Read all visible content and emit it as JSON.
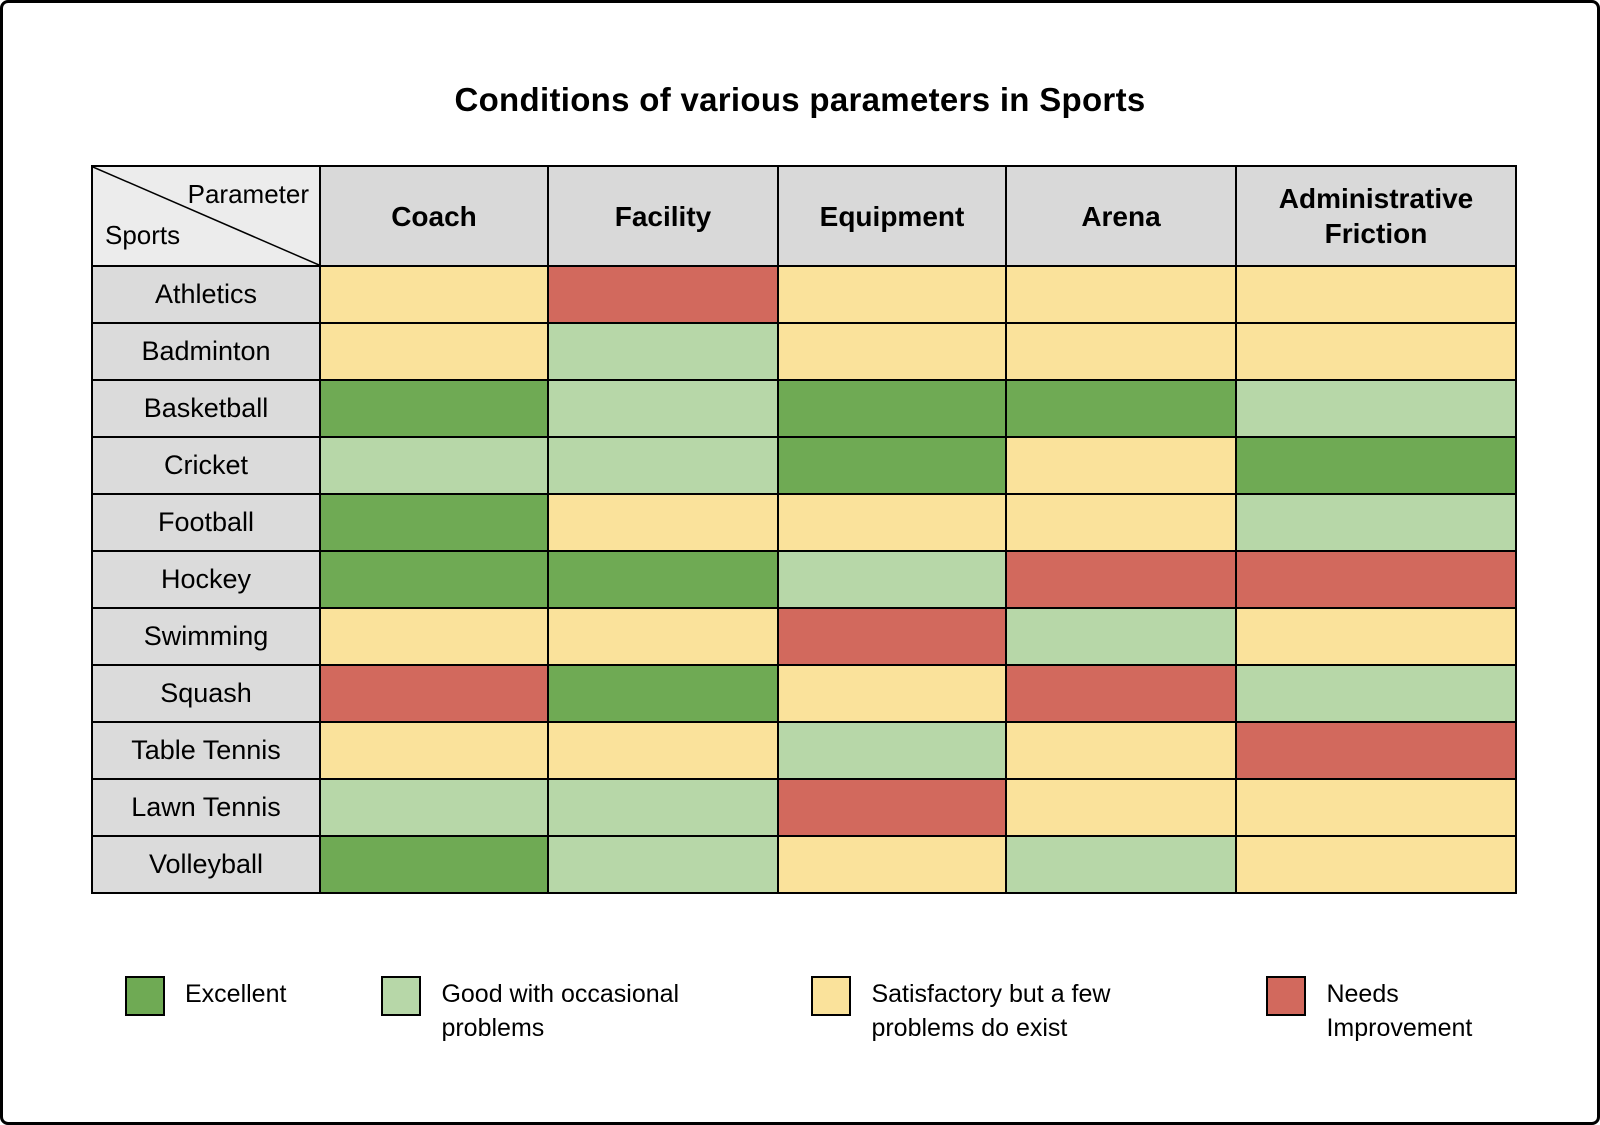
{
  "title": "Conditions of various parameters in Sports",
  "corner": {
    "top_label": "Parameter",
    "bottom_label": "Sports"
  },
  "colors": {
    "excellent": "#6FAA54",
    "good": "#B7D7A8",
    "satisfactory": "#FAE29B",
    "needs_improvement": "#D2695D",
    "header_bg": "#D9D9D9",
    "row_label_bg": "#DBDBDB",
    "corner_bg": "#ECECEC",
    "border": "#000000"
  },
  "legend": [
    {
      "key": "excellent",
      "label": "Excellent"
    },
    {
      "key": "good",
      "label": "Good with occasional problems"
    },
    {
      "key": "satisfactory",
      "label": "Satisfactory but a few problems do exist"
    },
    {
      "key": "needs_improvement",
      "label": "Needs Improvement"
    }
  ],
  "chart_data": {
    "type": "heatmap",
    "title": "Conditions of various parameters in Sports",
    "x_label": "Parameter",
    "y_label": "Sports",
    "x_categories": [
      "Coach",
      "Facility",
      "Equipment",
      "Arena",
      "Administrative Friction"
    ],
    "y_categories": [
      "Athletics",
      "Badminton",
      "Basketball",
      "Cricket",
      "Football",
      "Hockey",
      "Swimming",
      "Squash",
      "Table Tennis",
      "Lawn Tennis",
      "Volleyball"
    ],
    "value_labels": {
      "excellent": "Excellent",
      "good": "Good with occasional problems",
      "satisfactory": "Satisfactory but a few problems do exist",
      "needs_improvement": "Needs Improvement"
    },
    "values": [
      [
        "satisfactory",
        "needs_improvement",
        "satisfactory",
        "satisfactory",
        "satisfactory"
      ],
      [
        "satisfactory",
        "good",
        "satisfactory",
        "satisfactory",
        "satisfactory"
      ],
      [
        "excellent",
        "good",
        "excellent",
        "excellent",
        "good"
      ],
      [
        "good",
        "good",
        "excellent",
        "satisfactory",
        "excellent"
      ],
      [
        "excellent",
        "satisfactory",
        "satisfactory",
        "satisfactory",
        "good"
      ],
      [
        "excellent",
        "excellent",
        "good",
        "needs_improvement",
        "needs_improvement"
      ],
      [
        "satisfactory",
        "satisfactory",
        "needs_improvement",
        "good",
        "satisfactory"
      ],
      [
        "needs_improvement",
        "excellent",
        "satisfactory",
        "needs_improvement",
        "good"
      ],
      [
        "satisfactory",
        "satisfactory",
        "good",
        "satisfactory",
        "needs_improvement"
      ],
      [
        "good",
        "good",
        "needs_improvement",
        "satisfactory",
        "satisfactory"
      ],
      [
        "excellent",
        "good",
        "satisfactory",
        "good",
        "satisfactory"
      ]
    ],
    "legend_position": "bottom",
    "grid": true
  }
}
